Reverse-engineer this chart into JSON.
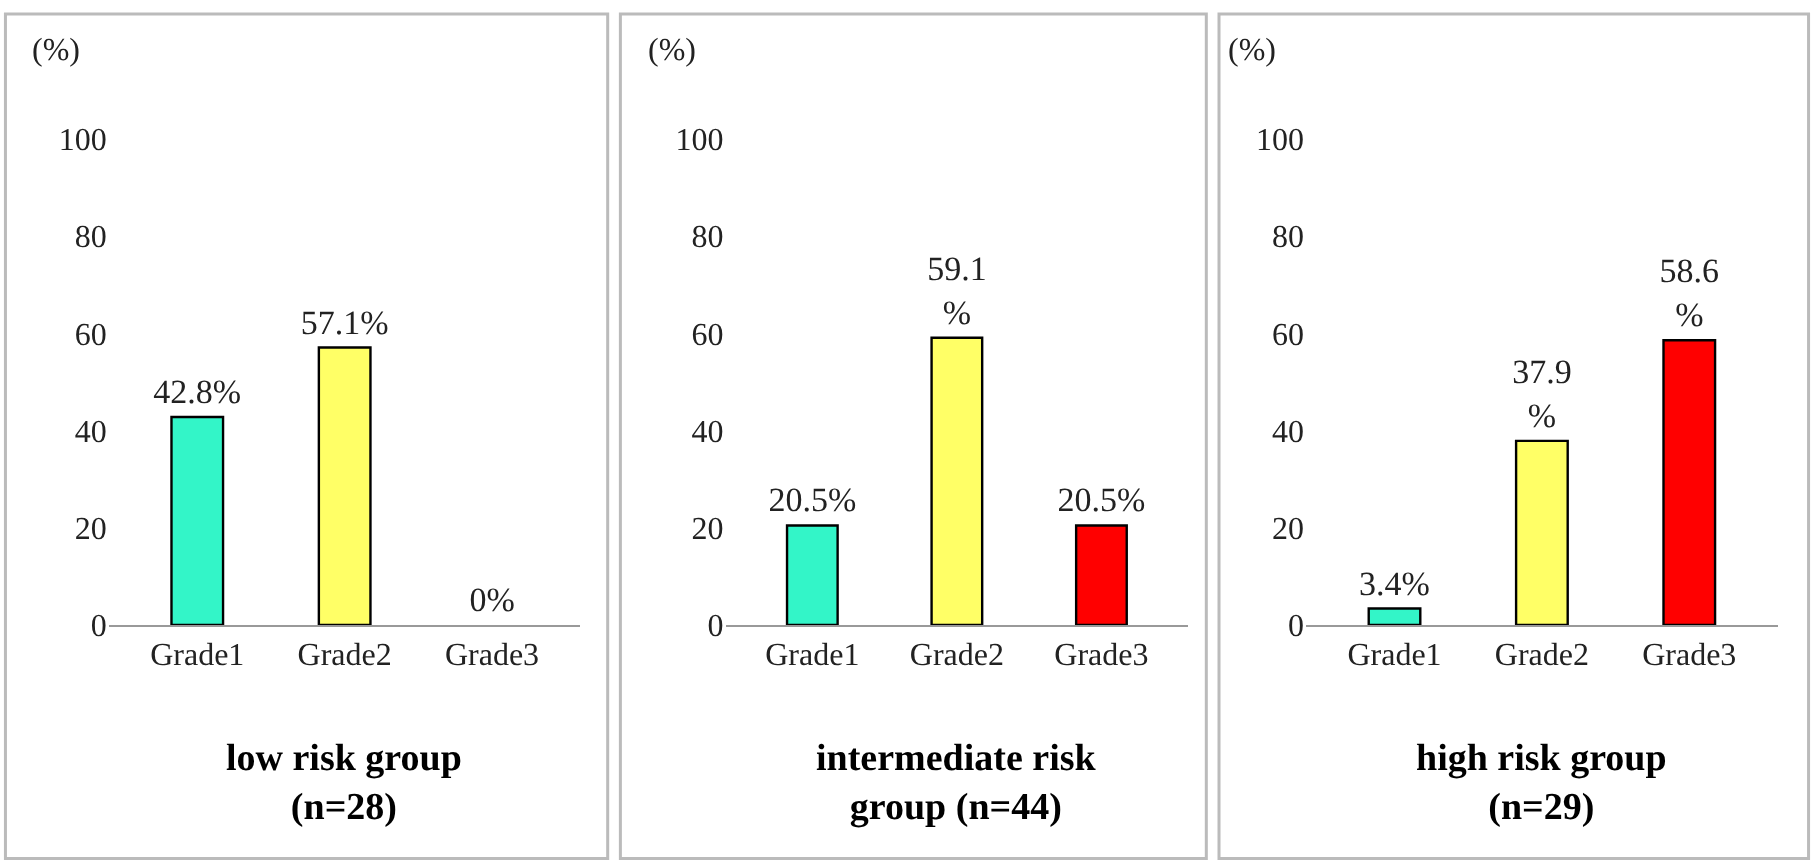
{
  "chart_data": [
    {
      "type": "bar",
      "title": "low risk group\n(n=28)",
      "ylabel": "(%)",
      "categories": [
        "Grade1",
        "Grade2",
        "Grade3"
      ],
      "values": [
        42.8,
        57.1,
        0
      ],
      "colors": [
        "#33f5c8",
        "#ffff66",
        null
      ],
      "value_labels": [
        "42.8%",
        "57.1%",
        "0%"
      ],
      "ylim": [
        0,
        100
      ],
      "yticks": [
        0,
        20,
        40,
        60,
        80,
        100
      ]
    },
    {
      "type": "bar",
      "title": "intermediate risk\ngroup (n=44)",
      "ylabel": "(%)",
      "categories": [
        "Grade1",
        "Grade2",
        "Grade3"
      ],
      "values": [
        20.5,
        59.1,
        20.5
      ],
      "colors": [
        "#33f5c8",
        "#ffff66",
        "#ff0000"
      ],
      "value_labels": [
        "20.5%",
        "59.1\n%",
        "20.5%"
      ],
      "ylim": [
        0,
        100
      ],
      "yticks": [
        0,
        20,
        40,
        60,
        80,
        100
      ]
    },
    {
      "type": "bar",
      "title": "high risk group\n(n=29)",
      "ylabel": "(%)",
      "categories": [
        "Grade1",
        "Grade2",
        "Grade3"
      ],
      "values": [
        3.4,
        37.9,
        58.6
      ],
      "colors": [
        "#33f5c8",
        "#ffff66",
        "#ff0000"
      ],
      "value_labels": [
        "3.4%",
        "37.9\n%",
        "58.6\n%"
      ],
      "ylim": [
        0,
        100
      ],
      "yticks": [
        0,
        20,
        40,
        60,
        80,
        100
      ]
    }
  ]
}
